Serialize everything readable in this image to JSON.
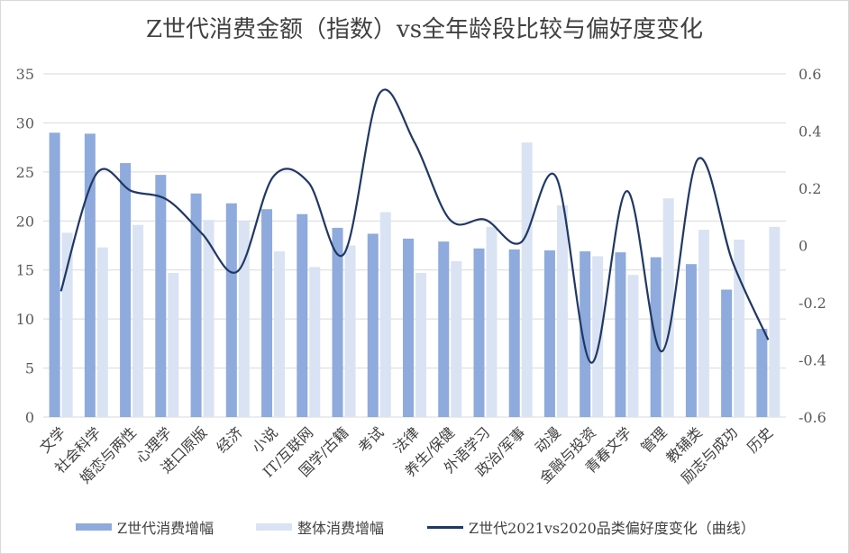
{
  "chart_data": {
    "type": "bar",
    "title": "Z世代消费金额（指数）vs全年龄段比较与偏好度变化",
    "categories": [
      "文学",
      "社会科学",
      "婚恋与两性",
      "心理学",
      "进口原版",
      "经济",
      "小说",
      "IT/互联网",
      "国学/古籍",
      "考试",
      "法律",
      "养生/保健",
      "外语学习",
      "政治/军事",
      "动漫",
      "金融与投资",
      "青春文学",
      "管理",
      "教辅类",
      "励志与成功",
      "历史"
    ],
    "series": [
      {
        "name": "Z世代消费增幅",
        "axis": "left",
        "type": "bar",
        "color": "#8faadc",
        "values": [
          29.0,
          28.9,
          25.9,
          24.7,
          22.8,
          21.8,
          21.2,
          20.7,
          19.3,
          18.7,
          18.2,
          17.9,
          17.2,
          17.1,
          17.0,
          16.9,
          16.8,
          16.3,
          15.6,
          13.0,
          9.0
        ]
      },
      {
        "name": "整体消费增幅",
        "axis": "left",
        "type": "bar",
        "color": "#dae3f3",
        "values": [
          18.8,
          17.3,
          19.6,
          14.7,
          20.1,
          20.0,
          16.9,
          15.3,
          17.5,
          20.9,
          14.7,
          15.9,
          19.4,
          28.0,
          21.6,
          16.4,
          14.5,
          22.3,
          19.1,
          18.1,
          19.4
        ]
      },
      {
        "name": "Z世代2021vs2020品类偏好度变化（曲线）",
        "axis": "right",
        "type": "line",
        "color": "#203864",
        "values": [
          -0.16,
          0.25,
          0.19,
          0.16,
          0.04,
          -0.09,
          0.24,
          0.22,
          -0.03,
          0.53,
          0.36,
          0.09,
          0.09,
          0.01,
          0.24,
          -0.41,
          0.19,
          -0.37,
          0.3,
          -0.06,
          -0.33
        ]
      }
    ],
    "ylim_left": [
      0,
      35
    ],
    "yticks_left": [
      "0",
      "5",
      "10",
      "15",
      "20",
      "25",
      "30",
      "35"
    ],
    "ylim_right": [
      -0.6,
      0.6
    ],
    "yticks_right": [
      "-0.6",
      "-0.4",
      "-0.2",
      "0",
      "0.2",
      "0.4",
      "0.6"
    ],
    "grid": true,
    "legend_position": "bottom"
  }
}
